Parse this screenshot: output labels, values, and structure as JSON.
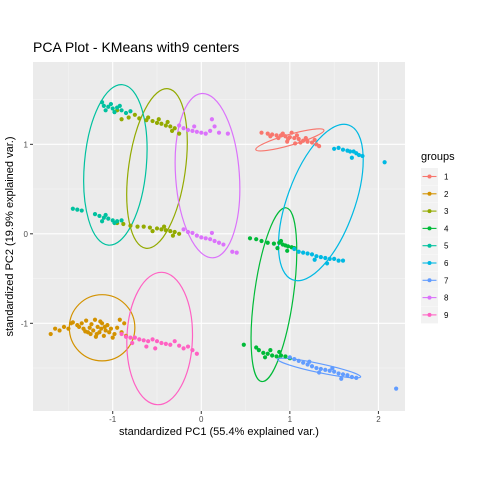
{
  "chart_data": {
    "type": "scatter",
    "title": "PCA Plot - KMeans with9 centers",
    "xlabel": "standardized PC1 (55.4% explained var.)",
    "ylabel": "standardized PC2 (19.9% explained var.)",
    "xlim": [
      -1.9,
      2.3
    ],
    "ylim": [
      -1.98,
      1.92
    ],
    "x_ticks": [
      -1,
      0,
      1,
      2
    ],
    "y_ticks": [
      -1,
      0,
      1
    ],
    "x_tick_labels": [
      "-1",
      "0",
      "1",
      "2"
    ],
    "y_tick_labels": [
      "-1",
      "0",
      "1"
    ],
    "grid": true,
    "legend": {
      "title": "groups",
      "placement": "right",
      "entries": [
        "1",
        "2",
        "3",
        "4",
        "5",
        "6",
        "7",
        "8",
        "9"
      ]
    },
    "series": [
      {
        "name": "1",
        "color": "#F8766D",
        "points": [
          [
            0.68,
            1.13
          ],
          [
            0.75,
            1.12
          ],
          [
            0.8,
            1.11
          ],
          [
            0.85,
            1.1
          ],
          [
            0.9,
            1.1
          ],
          [
            0.95,
            1.09
          ],
          [
            1.0,
            1.08
          ],
          [
            1.05,
            1.07
          ],
          [
            1.1,
            1.06
          ],
          [
            1.15,
            1.04
          ],
          [
            1.2,
            1.03
          ],
          [
            1.25,
            1.02
          ],
          [
            1.3,
            1.0
          ],
          [
            0.92,
            1.12
          ],
          [
            0.98,
            1.06
          ],
          [
            1.02,
            1.13
          ],
          [
            1.08,
            1.1
          ],
          [
            1.12,
            1.02
          ],
          [
            1.18,
            1.07
          ],
          [
            1.28,
            1.05
          ],
          [
            0.87,
            1.07
          ],
          [
            0.97,
            1.03
          ],
          [
            1.06,
            1.01
          ],
          [
            1.33,
            0.98
          ],
          [
            0.78,
            1.09
          ]
        ],
        "ellipse": {
          "cx": 1.0,
          "cy": 1.05,
          "rx": 0.4,
          "ry": 0.06,
          "angle_deg": -16
        }
      },
      {
        "name": "2",
        "color": "#D39200",
        "points": [
          [
            -1.7,
            -1.12
          ],
          [
            -1.65,
            -1.06
          ],
          [
            -1.6,
            -1.08
          ],
          [
            -1.55,
            -1.04
          ],
          [
            -1.5,
            -1.06
          ],
          [
            -1.47,
            -1.0
          ],
          [
            -1.45,
            -0.99
          ],
          [
            -1.4,
            -1.02
          ],
          [
            -1.38,
            -1.04
          ],
          [
            -1.35,
            -1.0
          ],
          [
            -1.33,
            -1.06
          ],
          [
            -1.3,
            -0.97
          ],
          [
            -1.28,
            -1.1
          ],
          [
            -1.26,
            -1.05
          ],
          [
            -1.24,
            -1.01
          ],
          [
            -1.22,
            -1.08
          ],
          [
            -1.2,
            -0.96
          ],
          [
            -1.18,
            -1.12
          ],
          [
            -1.17,
            -1.04
          ],
          [
            -1.15,
            -1.1
          ],
          [
            -1.13,
            -1.06
          ],
          [
            -1.12,
            -1.0
          ],
          [
            -1.1,
            -1.14
          ],
          [
            -1.08,
            -1.08
          ],
          [
            -1.06,
            -1.02
          ],
          [
            -1.04,
            -1.1
          ],
          [
            -1.02,
            -1.06
          ],
          [
            -1.0,
            -1.16
          ],
          [
            -0.98,
            -1.12
          ],
          [
            -0.95,
            -1.05
          ],
          [
            -0.92,
            -0.96
          ],
          [
            -0.9,
            -1.1
          ],
          [
            -0.87,
            -1.0
          ],
          [
            -0.85,
            -1.14
          ],
          [
            -1.25,
            -1.12
          ],
          [
            -1.19,
            -1.15
          ],
          [
            -1.31,
            -1.09
          ],
          [
            -1.14,
            -0.98
          ],
          [
            -1.09,
            -1.04
          ]
        ],
        "ellipse": {
          "cx": -1.12,
          "cy": -1.05,
          "rx": 0.37,
          "ry": 0.37,
          "angle_deg": 0
        }
      },
      {
        "name": "3",
        "color": "#93AA00",
        "points": [
          [
            -0.95,
            1.38
          ],
          [
            -0.9,
            1.28
          ],
          [
            -0.82,
            1.3
          ],
          [
            -0.75,
            1.33
          ],
          [
            -0.7,
            1.29
          ],
          [
            -0.62,
            1.27
          ],
          [
            -0.55,
            1.26
          ],
          [
            -0.5,
            1.24
          ],
          [
            -0.45,
            1.23
          ],
          [
            -0.4,
            1.21
          ],
          [
            -0.35,
            1.2
          ],
          [
            -0.3,
            1.18
          ],
          [
            -0.25,
            1.12
          ],
          [
            -0.6,
            1.3
          ],
          [
            -0.48,
            1.28
          ],
          [
            -0.38,
            1.25
          ],
          [
            -0.33,
            1.15
          ],
          [
            -0.95,
            0.12
          ],
          [
            -0.88,
            0.11
          ],
          [
            -0.8,
            0.09
          ],
          [
            -0.72,
            0.08
          ],
          [
            -0.65,
            0.08
          ],
          [
            -0.58,
            0.07
          ],
          [
            -0.5,
            0.06
          ],
          [
            -0.45,
            0.05
          ],
          [
            -0.4,
            0.04
          ],
          [
            -0.35,
            0.03
          ],
          [
            -0.3,
            0.02
          ],
          [
            -0.25,
            0.0
          ],
          [
            -0.55,
            0.03
          ],
          [
            -0.42,
            0.08
          ],
          [
            -0.32,
            -0.02
          ]
        ],
        "ellipse": {
          "cx": -0.5,
          "cy": 0.73,
          "rx": 0.32,
          "ry": 0.9,
          "angle_deg": 8
        }
      },
      {
        "name": "4",
        "color": "#00BA38",
        "points": [
          [
            0.55,
            -0.05
          ],
          [
            0.62,
            -0.06
          ],
          [
            0.68,
            -0.08
          ],
          [
            0.75,
            -0.1
          ],
          [
            0.82,
            -0.11
          ],
          [
            0.88,
            -0.1
          ],
          [
            0.92,
            -0.12
          ],
          [
            0.95,
            -0.13
          ],
          [
            0.98,
            -0.14
          ],
          [
            1.02,
            -0.15
          ],
          [
            1.05,
            -0.16
          ],
          [
            0.9,
            -0.08
          ],
          [
            0.97,
            -0.19
          ],
          [
            0.86,
            -0.16
          ],
          [
            0.48,
            -1.24
          ],
          [
            0.62,
            -1.27
          ],
          [
            0.65,
            -1.3
          ],
          [
            0.7,
            -1.33
          ],
          [
            0.75,
            -1.34
          ],
          [
            0.8,
            -1.36
          ],
          [
            0.85,
            -1.37
          ],
          [
            0.9,
            -1.36
          ],
          [
            0.95,
            -1.37
          ],
          [
            0.78,
            -1.3
          ],
          [
            0.88,
            -1.32
          ],
          [
            0.72,
            -1.38
          ],
          [
            1.0,
            -1.39
          ]
        ],
        "ellipse": {
          "cx": 0.82,
          "cy": -0.68,
          "rx": 0.22,
          "ry": 0.98,
          "angle_deg": 8
        }
      },
      {
        "name": "5",
        "color": "#00C19F",
        "points": [
          [
            -1.45,
            0.28
          ],
          [
            -1.4,
            0.27
          ],
          [
            -1.35,
            0.26
          ],
          [
            -1.2,
            0.22
          ],
          [
            -1.15,
            0.2
          ],
          [
            -1.1,
            0.18
          ],
          [
            -1.05,
            0.17
          ],
          [
            -1.0,
            0.15
          ],
          [
            -0.95,
            0.14
          ],
          [
            -0.9,
            0.15
          ],
          [
            -1.08,
            0.21
          ],
          [
            -0.98,
            0.12
          ],
          [
            -1.12,
            0.14
          ],
          [
            -1.12,
            1.47
          ],
          [
            -1.1,
            1.43
          ],
          [
            -1.05,
            1.42
          ],
          [
            -1.0,
            1.4
          ],
          [
            -0.95,
            1.41
          ],
          [
            -0.9,
            1.38
          ],
          [
            -0.85,
            1.35
          ],
          [
            -0.8,
            1.37
          ],
          [
            -1.08,
            1.38
          ],
          [
            -0.98,
            1.36
          ],
          [
            -0.92,
            1.43
          ],
          [
            -1.02,
            1.45
          ]
        ],
        "ellipse": {
          "cx": -0.97,
          "cy": 0.77,
          "rx": 0.35,
          "ry": 0.9,
          "angle_deg": 5
        }
      },
      {
        "name": "6",
        "color": "#00B9E3",
        "points": [
          [
            1.05,
            -0.17
          ],
          [
            1.1,
            -0.2
          ],
          [
            1.15,
            -0.21
          ],
          [
            1.2,
            -0.22
          ],
          [
            1.25,
            -0.23
          ],
          [
            1.3,
            -0.25
          ],
          [
            1.35,
            -0.26
          ],
          [
            1.4,
            -0.27
          ],
          [
            1.45,
            -0.28
          ],
          [
            1.5,
            -0.28
          ],
          [
            1.55,
            -0.3
          ],
          [
            1.6,
            -0.3
          ],
          [
            1.28,
            -0.29
          ],
          [
            1.42,
            -0.33
          ],
          [
            1.5,
            0.95
          ],
          [
            1.55,
            0.96
          ],
          [
            1.6,
            0.94
          ],
          [
            1.65,
            0.93
          ],
          [
            1.68,
            0.92
          ],
          [
            1.72,
            0.92
          ],
          [
            1.75,
            0.9
          ],
          [
            1.78,
            0.88
          ],
          [
            1.82,
            0.87
          ],
          [
            1.7,
            0.85
          ],
          [
            2.07,
            0.8
          ]
        ],
        "ellipse": {
          "cx": 1.35,
          "cy": 0.35,
          "rx": 0.38,
          "ry": 0.92,
          "angle_deg": 20
        }
      },
      {
        "name": "7",
        "color": "#619CFF",
        "points": [
          [
            1.0,
            -1.38
          ],
          [
            1.05,
            -1.4
          ],
          [
            1.1,
            -1.42
          ],
          [
            1.15,
            -1.44
          ],
          [
            1.2,
            -1.46
          ],
          [
            1.25,
            -1.48
          ],
          [
            1.3,
            -1.5
          ],
          [
            1.35,
            -1.51
          ],
          [
            1.4,
            -1.52
          ],
          [
            1.45,
            -1.53
          ],
          [
            1.5,
            -1.54
          ],
          [
            1.55,
            -1.56
          ],
          [
            1.6,
            -1.57
          ],
          [
            1.65,
            -1.58
          ],
          [
            1.7,
            -1.6
          ],
          [
            1.75,
            -1.61
          ],
          [
            1.22,
            -1.43
          ],
          [
            1.33,
            -1.55
          ],
          [
            1.48,
            -1.5
          ],
          [
            1.58,
            -1.62
          ],
          [
            2.2,
            -1.73
          ]
        ],
        "ellipse": {
          "cx": 1.33,
          "cy": -1.5,
          "rx": 0.48,
          "ry": 0.05,
          "angle_deg": 12
        }
      },
      {
        "name": "8",
        "color": "#DB72FB",
        "points": [
          [
            -0.25,
            1.21
          ],
          [
            -0.2,
            1.18
          ],
          [
            -0.15,
            1.16
          ],
          [
            -0.1,
            1.15
          ],
          [
            -0.05,
            1.14
          ],
          [
            0.0,
            1.13
          ],
          [
            0.05,
            1.12
          ],
          [
            0.1,
            1.15
          ],
          [
            0.15,
            1.2
          ],
          [
            0.2,
            1.13
          ],
          [
            0.3,
            1.12
          ],
          [
            0.12,
            1.28
          ],
          [
            -0.08,
            1.2
          ],
          [
            -0.2,
            0.05
          ],
          [
            -0.15,
            0.02
          ],
          [
            -0.1,
            0.01
          ],
          [
            -0.05,
            -0.02
          ],
          [
            0.0,
            -0.04
          ],
          [
            0.05,
            -0.05
          ],
          [
            0.1,
            -0.06
          ],
          [
            0.15,
            -0.08
          ],
          [
            0.2,
            -0.1
          ],
          [
            0.25,
            -0.12
          ],
          [
            0.35,
            -0.2
          ],
          [
            0.4,
            -0.21
          ],
          [
            0.12,
            0.01
          ]
        ],
        "ellipse": {
          "cx": 0.07,
          "cy": 0.65,
          "rx": 0.36,
          "ry": 0.92,
          "angle_deg": -4
        }
      },
      {
        "name": "9",
        "color": "#FF61C3",
        "points": [
          [
            -0.9,
            -1.12
          ],
          [
            -0.85,
            -1.15
          ],
          [
            -0.8,
            -1.16
          ],
          [
            -0.75,
            -1.16
          ],
          [
            -0.7,
            -1.18
          ],
          [
            -0.65,
            -1.19
          ],
          [
            -0.6,
            -1.2
          ],
          [
            -0.55,
            -1.18
          ],
          [
            -0.5,
            -1.2
          ],
          [
            -0.45,
            -1.22
          ],
          [
            -0.4,
            -1.23
          ],
          [
            -0.35,
            -1.24
          ],
          [
            -0.3,
            -1.2
          ],
          [
            -0.25,
            -1.25
          ],
          [
            -0.2,
            -1.28
          ],
          [
            -0.15,
            -1.26
          ],
          [
            -0.1,
            -1.3
          ],
          [
            -0.05,
            -1.34
          ],
          [
            -0.62,
            -1.26
          ],
          [
            -0.52,
            -1.28
          ],
          [
            -0.78,
            -1.22
          ]
        ],
        "ellipse": {
          "cx": -0.47,
          "cy": -1.17,
          "rx": 0.37,
          "ry": 0.74,
          "angle_deg": 2
        }
      }
    ]
  }
}
